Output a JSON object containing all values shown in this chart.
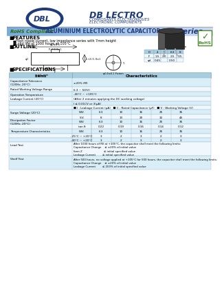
{
  "bg_color": "#ffffff",
  "blue_dark": "#1e3a7a",
  "blue_mid": "#4a7abf",
  "banner_blue": "#7ab0d8",
  "banner_light": "#b8d8ee",
  "table_header_bg": "#a8cce0",
  "table_row1": "#daeef8",
  "table_row2": "#f0f8fd",
  "green_rohs": "#4a8a2a",
  "company": "DB LECTRO",
  "company_tag1": "COMPOSANTS ELECTRONIQUES",
  "company_tag2": "ELECTRONIC COMPONENTS",
  "series_title": "ZS Series",
  "banner_text1": "RoHS Compliant",
  "banner_text2": "ALUMINIUM ELECTROLYTIC CAPACITOR",
  "features": [
    "High ripple current, low impedance series with 7mm height",
    "Load life of 1000 hours at 105°C"
  ],
  "dim_cols": [
    "D",
    "4",
    "5",
    "6.3",
    "8"
  ],
  "dim_f": [
    "F",
    "1.5",
    "2.0",
    "2.5",
    "3.5"
  ],
  "dim_d": [
    "φd",
    "0.45",
    "",
    "0.50",
    ""
  ],
  "spec_header": [
    "Items",
    "Characteristics"
  ],
  "spec_rows": [
    [
      "Capacitance Tolerance\n(120Hz, 20°C)",
      "±20% (M)"
    ],
    [
      "Rated Working Voltage Range",
      "6.3 ~ 50(V)"
    ],
    [
      "Operation Temperature",
      "-40°C ~ +105°C"
    ],
    [
      "Leakage Current (20°C)",
      "(After 2 minutes applying the DC working voltage)"
    ],
    [
      "",
      "I ≤ 0.01CV or 3(μA)"
    ],
    [
      "",
      "■ I : Leakage Current (μA)   ■ C : Rated Capacitance (μF)   ■ V : Working Voltage (V)"
    ]
  ],
  "surge_header": [
    "W.V.",
    "6.3",
    "10",
    "16",
    "25",
    "35"
  ],
  "surge_sv": [
    "S.V.",
    "8",
    "13",
    "20",
    "32",
    "44"
  ],
  "diss_wv": [
    "W.V.",
    "6.3",
    "10",
    "16",
    "25",
    "35"
  ],
  "diss_tan": [
    "tan δ",
    "0.22",
    "0.19",
    "0.16",
    "0.14",
    "0.12"
  ],
  "temp_wv": [
    "W.V.",
    "6.3",
    "10",
    "16",
    "25",
    "35"
  ],
  "temp_vals": [
    "-25°C ~ +20°C",
    "3",
    "2",
    "3",
    "2",
    "3"
  ],
  "temp_vals2": [
    "-40°C ~ +20°C",
    "3",
    "2",
    "3",
    "2",
    "3"
  ],
  "lead_rows": [
    [
      "After 1000 hours of RV at +105°C, the capacitor shall meet the following limits:"
    ],
    [
      "Capacitance Change",
      "≤ ±20% of initial value"
    ],
    [
      "Item Z",
      "≤ initial specified value"
    ],
    [
      "Leakage Current",
      "≤ initial specified value"
    ]
  ],
  "shelf_rows": [
    [
      "After 500 hours, no voltage applied at +105°C for 500 hours, the capacitor shall meet the following limits:"
    ],
    [
      "Capacitance Change",
      "≤ ±20% of initial value"
    ],
    [
      "Leakage Current",
      "≤ 200% of initial specified value"
    ]
  ]
}
